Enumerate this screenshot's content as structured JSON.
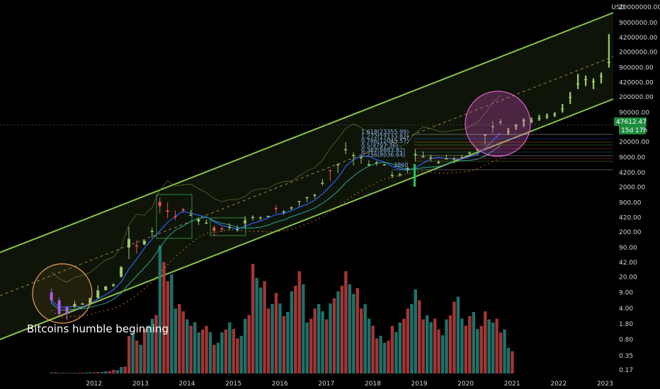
{
  "chart_data": {
    "type": "candlestick",
    "currency": "USD",
    "y_scale": "log",
    "ylim": [
      0.12,
      20000000
    ],
    "y_ticks": [
      "20000000.00",
      "9000000.00",
      "4200000.00",
      "2000000.00",
      "900000.00",
      "420000.00",
      "200000.00",
      "90000.00",
      "20000.00",
      "9000.00",
      "4200.00",
      "2000.00",
      "900.00",
      "420.00",
      "200.00",
      "90.00",
      "42.00",
      "20.00",
      "9.00",
      "4.00",
      "1.80",
      "0.80",
      "0.35",
      "0.17"
    ],
    "x_ticks": [
      "2012",
      "2013",
      "2014",
      "2015",
      "2016",
      "2017",
      "2018",
      "2019",
      "2020",
      "2021",
      "2022",
      "2023"
    ],
    "current_price": "47612.47",
    "countdown": "15d 17h",
    "annotation": "Bitcoins humble beginning",
    "fib_labels": [
      "1.618(23355.99)",
      "1.272(17133.82)",
      "0.786(12045.57)",
      "0.5(9797.36)",
      "0.382(8883.82)",
      "0.236(8036.64)"
    ],
    "fib_value": "3860",
    "price_series": [
      [
        "2011-08",
        9,
        11,
        5,
        6
      ],
      [
        "2011-10",
        6,
        7,
        2.5,
        3
      ],
      [
        "2011-12",
        3,
        4.5,
        2.2,
        4.2
      ],
      [
        "2012-02",
        4.4,
        6,
        4,
        5
      ],
      [
        "2012-04",
        5,
        5.3,
        4.7,
        5.1
      ],
      [
        "2012-06",
        5.1,
        7,
        5,
        6.7
      ],
      [
        "2012-08",
        6.8,
        13,
        6.5,
        10
      ],
      [
        "2012-10",
        10,
        12.5,
        10,
        12.3
      ],
      [
        "2012-12",
        12.5,
        14.5,
        12,
        13.5
      ],
      [
        "2013-02",
        20,
        35,
        19,
        33
      ],
      [
        "2013-04",
        90,
        260,
        50,
        140
      ],
      [
        "2013-06",
        100,
        130,
        65,
        95
      ],
      [
        "2013-08",
        105,
        130,
        100,
        128
      ],
      [
        "2013-10",
        200,
        250,
        150,
        210
      ],
      [
        "2013-12",
        920,
        1150,
        520,
        750
      ],
      [
        "2014-02",
        600,
        900,
        400,
        560
      ],
      [
        "2014-04",
        450,
        600,
        360,
        440
      ],
      [
        "2014-06",
        640,
        680,
        530,
        610
      ],
      [
        "2014-08",
        480,
        610,
        450,
        480
      ],
      [
        "2014-10",
        340,
        420,
        280,
        380
      ],
      [
        "2014-12",
        320,
        380,
        300,
        320
      ],
      [
        "2015-02",
        250,
        280,
        160,
        210
      ],
      [
        "2015-04",
        240,
        260,
        200,
        230
      ],
      [
        "2015-06",
        260,
        310,
        220,
        260
      ],
      [
        "2015-08",
        230,
        280,
        200,
        230
      ],
      [
        "2015-10",
        310,
        450,
        240,
        360
      ],
      [
        "2015-12",
        420,
        470,
        350,
        430
      ],
      [
        "2016-02",
        410,
        440,
        360,
        420
      ],
      [
        "2016-04",
        440,
        460,
        420,
        450
      ],
      [
        "2016-06",
        680,
        780,
        520,
        670
      ],
      [
        "2016-08",
        570,
        620,
        480,
        570
      ],
      [
        "2016-10",
        690,
        740,
        610,
        700
      ],
      [
        "2016-12",
        960,
        980,
        740,
        960
      ],
      [
        "2017-02",
        1180,
        1200,
        920,
        1180
      ],
      [
        "2017-04",
        1340,
        1400,
        1100,
        1340
      ],
      [
        "2017-06",
        2480,
        3000,
        2100,
        2480
      ],
      [
        "2017-08",
        4730,
        4800,
        2700,
        4700
      ],
      [
        "2017-10",
        6450,
        6500,
        4100,
        6450
      ],
      [
        "2017-12",
        13800,
        19800,
        10700,
        13800
      ],
      [
        "2018-02",
        10300,
        11800,
        6000,
        10300
      ],
      [
        "2018-04",
        9200,
        9700,
        6500,
        9200
      ],
      [
        "2018-06",
        6400,
        7800,
        5800,
        6400
      ],
      [
        "2018-08",
        7000,
        7600,
        5900,
        7000
      ],
      [
        "2018-10",
        6300,
        6600,
        6100,
        6300
      ],
      [
        "2018-12",
        3700,
        4400,
        3150,
        3700
      ],
      [
        "2019-02",
        3800,
        4200,
        3300,
        3800
      ],
      [
        "2019-04",
        5300,
        5500,
        4000,
        5300
      ],
      [
        "2019-06",
        10800,
        13800,
        7500,
        10800
      ],
      [
        "2019-08",
        9600,
        12300,
        9300,
        9600
      ],
      [
        "2019-10",
        9100,
        10400,
        7300,
        9100
      ],
      [
        "2019-12",
        7200,
        7900,
        6400,
        7200
      ],
      [
        "2020-02",
        8600,
        10500,
        8400,
        8600
      ],
      [
        "2020-04",
        8600,
        9400,
        6600,
        8600
      ],
      [
        "2020-06",
        9100,
        10400,
        8900,
        9100
      ],
      [
        "2020-08",
        11600,
        12400,
        10500,
        11600
      ],
      [
        "2020-10",
        13800,
        14100,
        10400,
        13800
      ],
      [
        "2020-12",
        29000,
        29300,
        17600,
        29000
      ],
      [
        "2021-02",
        45000,
        58000,
        32000,
        45000
      ],
      [
        "2021-04",
        57000,
        65000,
        47000,
        57000
      ],
      [
        "2021-06",
        35000,
        41000,
        28800,
        35000
      ],
      [
        "2021-08",
        47000,
        50000,
        37300,
        47000
      ],
      [
        "2021-10",
        61300,
        67000,
        43000,
        61300
      ],
      [
        "2021-12",
        60000,
        70000,
        53000,
        60000
      ],
      [
        "2022-02",
        68000,
        80000,
        59000,
        68000
      ],
      [
        "2022-04",
        76000,
        86000,
        65000,
        76000
      ],
      [
        "2022-06",
        84000,
        92000,
        72000,
        84000
      ],
      [
        "2022-08",
        110000,
        140000,
        90000,
        110000
      ],
      [
        "2022-10",
        200000,
        260000,
        140000,
        200000
      ],
      [
        "2022-12",
        400000,
        650000,
        300000,
        400000
      ],
      [
        "2023-02",
        500000,
        600000,
        350000,
        500000
      ],
      [
        "2023-04",
        450000,
        520000,
        300000,
        450000
      ],
      [
        "2023-06",
        600000,
        700000,
        400000,
        600000
      ],
      [
        "2023-08",
        1200000,
        5000000,
        900000,
        1200000
      ]
    ],
    "volume_series": [
      [
        "2011-08",
        1.6
      ],
      [
        "2011-10",
        1
      ],
      [
        "2011-12",
        0.8
      ],
      [
        "2012-02",
        1
      ],
      [
        "2012-04",
        1.2
      ],
      [
        "2012-06",
        1.6
      ],
      [
        "2012-08",
        2
      ],
      [
        "2012-10",
        3
      ],
      [
        "2012-12",
        5
      ],
      [
        "2013-02",
        10
      ],
      [
        "2013-04",
        55
      ],
      [
        "2013-06",
        45
      ],
      [
        "2013-08",
        70
      ],
      [
        "2013-10",
        80
      ],
      [
        "2013-12",
        175
      ],
      [
        "2014-02",
        145
      ],
      [
        "2014-04",
        95
      ],
      [
        "2014-06",
        85
      ],
      [
        "2014-08",
        75
      ],
      [
        "2014-10",
        60
      ],
      [
        "2014-12",
        65
      ],
      [
        "2015-02",
        45
      ],
      [
        "2015-04",
        60
      ],
      [
        "2015-06",
        70
      ],
      [
        "2015-08",
        55
      ],
      [
        "2015-10",
        80
      ],
      [
        "2015-12",
        150
      ],
      [
        "2016-02",
        135
      ],
      [
        "2016-04",
        95
      ],
      [
        "2016-06",
        110
      ],
      [
        "2016-08",
        90
      ],
      [
        "2016-10",
        120
      ],
      [
        "2016-12",
        140
      ],
      [
        "2017-02",
        80
      ],
      [
        "2017-04",
        95
      ],
      [
        "2017-06",
        85
      ],
      [
        "2017-08",
        110
      ],
      [
        "2017-10",
        120
      ],
      [
        "2017-12",
        140
      ],
      [
        "2018-02",
        125
      ],
      [
        "2018-04",
        95
      ],
      [
        "2018-06",
        75
      ],
      [
        "2018-08",
        55
      ],
      [
        "2018-10",
        45
      ],
      [
        "2018-12",
        65
      ],
      [
        "2019-02",
        80
      ],
      [
        "2019-04",
        95
      ],
      [
        "2019-06",
        115
      ],
      [
        "2019-08",
        85
      ],
      [
        "2019-10",
        75
      ],
      [
        "2019-12",
        60
      ],
      [
        "2020-02",
        85
      ],
      [
        "2020-04",
        105
      ],
      [
        "2020-06",
        75
      ],
      [
        "2020-08",
        90
      ],
      [
        "2020-10",
        65
      ],
      [
        "2020-12",
        85
      ],
      [
        "2021-02",
        80
      ],
      [
        "2021-04",
        60
      ],
      [
        "2021-06",
        35
      ]
    ],
    "colors": {
      "up": "#26a69a",
      "down": "#ef5350",
      "channel": "#8bc34a",
      "projection": "#9ccc65"
    }
  }
}
